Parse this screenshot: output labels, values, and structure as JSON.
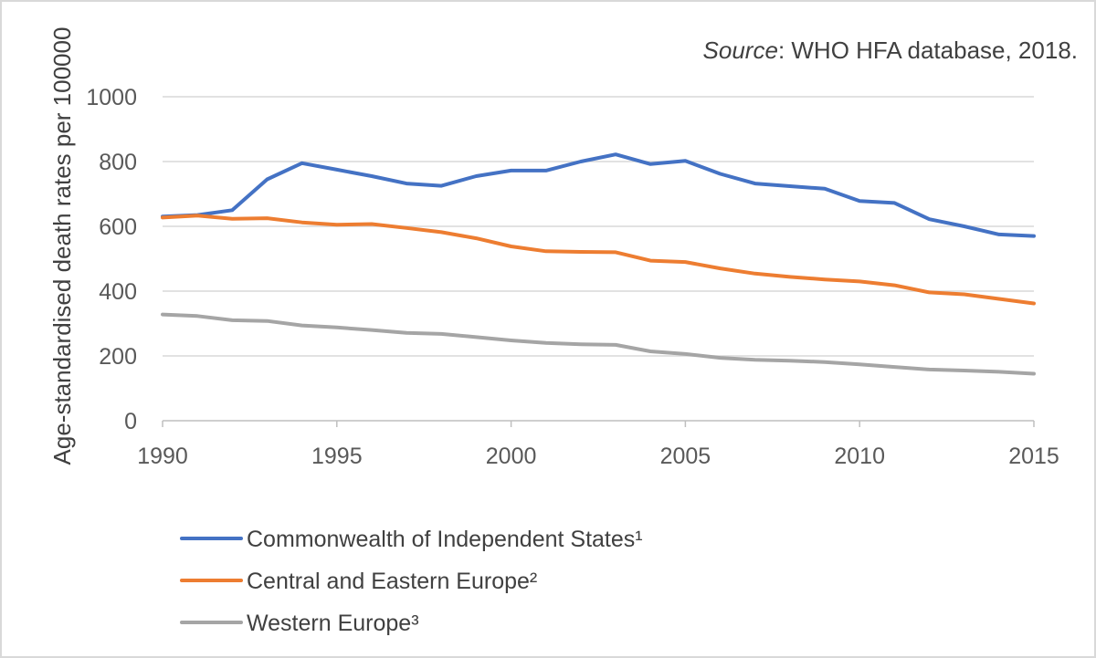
{
  "source": {
    "label": "Source",
    "text": ": WHO HFA database, 2018."
  },
  "chart_data": {
    "type": "line",
    "title": "",
    "xlabel": "",
    "ylabel": "Age-standardised death rates per 100000",
    "xlim": [
      1990,
      2015
    ],
    "ylim": [
      0,
      1000
    ],
    "x_ticks": [
      "1990",
      "1995",
      "2000",
      "2005",
      "2010",
      "2015"
    ],
    "y_ticks": [
      "0",
      "200",
      "400",
      "600",
      "800",
      "1000"
    ],
    "grid": true,
    "legend_position": "bottom",
    "x": [
      1990,
      1991,
      1992,
      1993,
      1994,
      1995,
      1996,
      1997,
      1998,
      1999,
      2000,
      2001,
      2002,
      2003,
      2004,
      2005,
      2006,
      2007,
      2008,
      2009,
      2010,
      2011,
      2012,
      2013,
      2014,
      2015
    ],
    "series": [
      {
        "name": "Commonwealth of Independent States¹",
        "color": "#4472c4",
        "values": [
          630,
          635,
          650,
          745,
          795,
          775,
          755,
          732,
          725,
          755,
          772,
          772,
          800,
          822,
          792,
          802,
          762,
          732,
          724,
          716,
          678,
          672,
          622,
          600,
          575,
          570
        ]
      },
      {
        "name": "Central and Eastern Europe²",
        "color": "#ed7d31",
        "values": [
          627,
          633,
          623,
          625,
          612,
          605,
          607,
          595,
          582,
          563,
          538,
          523,
          521,
          520,
          494,
          490,
          470,
          454,
          444,
          436,
          430,
          418,
          396,
          390,
          376,
          362
        ]
      },
      {
        "name": "Western Europe³",
        "color": "#a5a5a5",
        "values": [
          328,
          323,
          310,
          308,
          294,
          288,
          280,
          271,
          268,
          258,
          248,
          240,
          236,
          234,
          214,
          206,
          194,
          188,
          185,
          181,
          174,
          166,
          158,
          155,
          151,
          145
        ]
      }
    ]
  }
}
